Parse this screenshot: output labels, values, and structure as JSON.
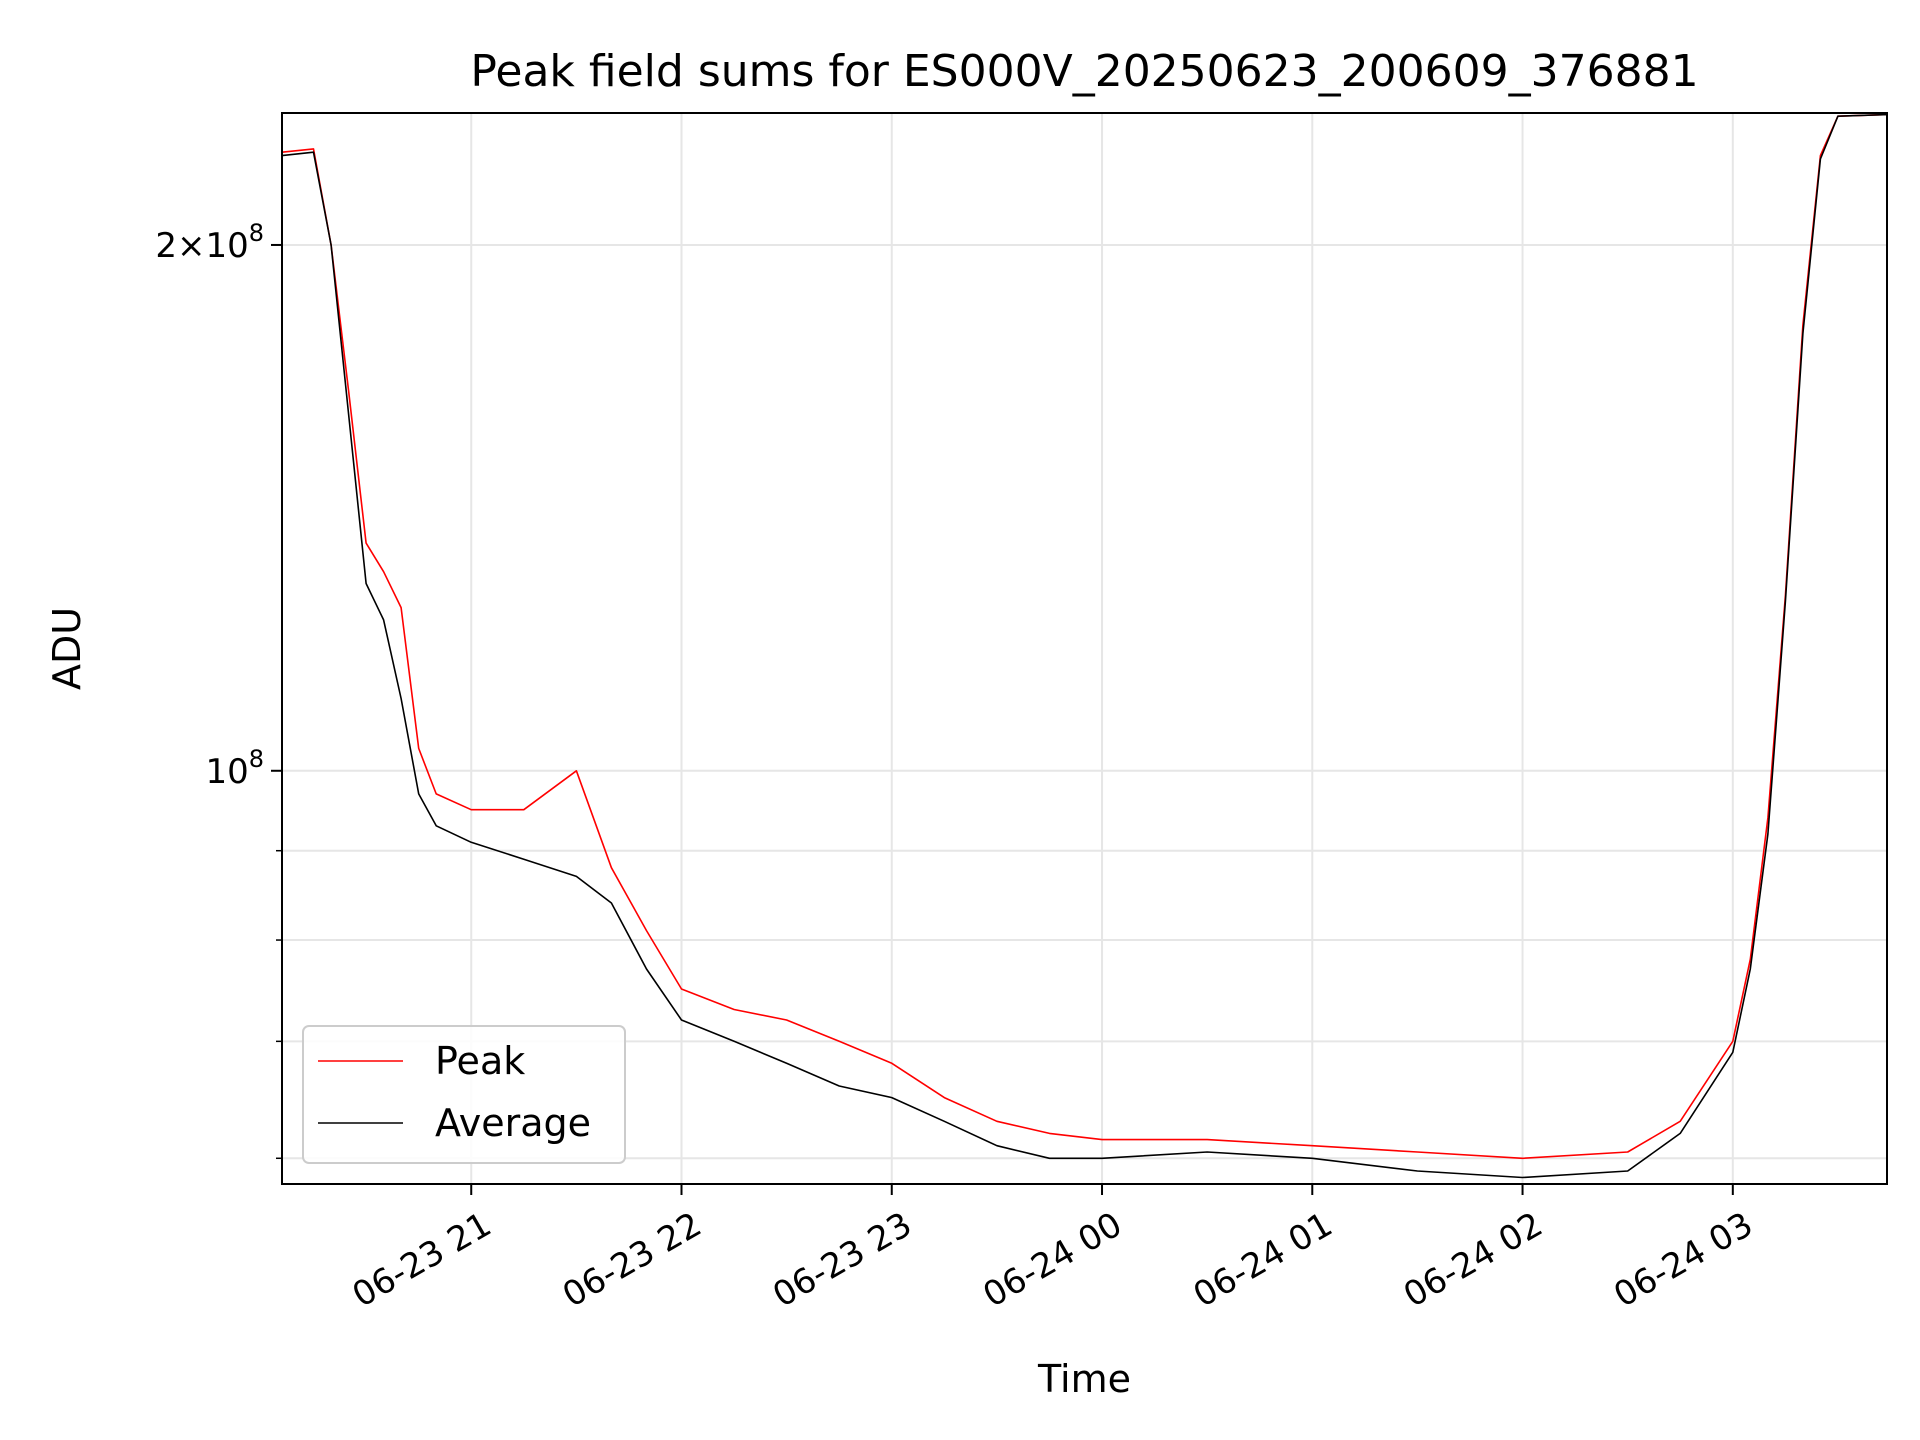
{
  "chart_data": {
    "type": "line",
    "title": "Peak field sums for ES000V_20250623_200609_376881",
    "xlabel": "Time",
    "ylabel": "ADU",
    "x_axis": {
      "kind": "time",
      "range": [
        "2025-06-23 20:06",
        "2025-06-24 03:44"
      ],
      "ticks": [
        {
          "value": "2025-06-23 21:00",
          "label": "06-23 21"
        },
        {
          "value": "2025-06-23 22:00",
          "label": "06-23 22"
        },
        {
          "value": "2025-06-23 23:00",
          "label": "06-23 23"
        },
        {
          "value": "2025-06-24 00:00",
          "label": "06-24 00"
        },
        {
          "value": "2025-06-24 01:00",
          "label": "06-24 01"
        },
        {
          "value": "2025-06-24 02:00",
          "label": "06-24 02"
        },
        {
          "value": "2025-06-24 03:00",
          "label": "06-24 03"
        }
      ]
    },
    "y_axis": {
      "scale": "log",
      "range": [
        58000000,
        238000000
      ],
      "major_ticks": [
        {
          "value": 100000000,
          "label": "10^8"
        },
        {
          "value": 200000000,
          "label": "2×10^8"
        }
      ],
      "minor_ticks": [
        60000000,
        70000000,
        80000000,
        90000000
      ]
    },
    "grid": true,
    "legend": {
      "position": "lower-left"
    },
    "series": [
      {
        "name": "Peak",
        "color": "#ff0000",
        "x": [
          "2025-06-23 20:06",
          "2025-06-23 20:15",
          "2025-06-23 20:20",
          "2025-06-23 20:25",
          "2025-06-23 20:30",
          "2025-06-23 20:35",
          "2025-06-23 20:40",
          "2025-06-23 20:45",
          "2025-06-23 20:50",
          "2025-06-23 21:00",
          "2025-06-23 21:15",
          "2025-06-23 21:30",
          "2025-06-23 21:40",
          "2025-06-23 21:50",
          "2025-06-23 22:00",
          "2025-06-23 22:15",
          "2025-06-23 22:30",
          "2025-06-23 22:45",
          "2025-06-23 23:00",
          "2025-06-23 23:15",
          "2025-06-23 23:30",
          "2025-06-23 23:45",
          "2025-06-24 00:00",
          "2025-06-24 00:30",
          "2025-06-24 01:00",
          "2025-06-24 01:30",
          "2025-06-24 02:00",
          "2025-06-24 02:30",
          "2025-06-24 02:45",
          "2025-06-24 03:00",
          "2025-06-24 03:05",
          "2025-06-24 03:10",
          "2025-06-24 03:15",
          "2025-06-24 03:20",
          "2025-06-24 03:25",
          "2025-06-24 03:30",
          "2025-06-24 03:44"
        ],
        "y": [
          226000000,
          227000000,
          200000000,
          165000000,
          135000000,
          130000000,
          124000000,
          103000000,
          97000000,
          95000000,
          95000000,
          100000000,
          88000000,
          81000000,
          75000000,
          73000000,
          72000000,
          70000000,
          68000000,
          65000000,
          63000000,
          62000000,
          61500000,
          61500000,
          61000000,
          60500000,
          60000000,
          60500000,
          63000000,
          70000000,
          78000000,
          94000000,
          126000000,
          180000000,
          225000000,
          237000000,
          237500000
        ]
      },
      {
        "name": "Average",
        "color": "#000000",
        "x": [
          "2025-06-23 20:06",
          "2025-06-23 20:15",
          "2025-06-23 20:20",
          "2025-06-23 20:25",
          "2025-06-23 20:30",
          "2025-06-23 20:35",
          "2025-06-23 20:40",
          "2025-06-23 20:45",
          "2025-06-23 20:50",
          "2025-06-23 21:00",
          "2025-06-23 21:15",
          "2025-06-23 21:30",
          "2025-06-23 21:40",
          "2025-06-23 21:50",
          "2025-06-23 22:00",
          "2025-06-23 22:15",
          "2025-06-23 22:30",
          "2025-06-23 22:45",
          "2025-06-23 23:00",
          "2025-06-23 23:15",
          "2025-06-23 23:30",
          "2025-06-23 23:45",
          "2025-06-24 00:00",
          "2025-06-24 00:30",
          "2025-06-24 01:00",
          "2025-06-24 01:30",
          "2025-06-24 02:00",
          "2025-06-24 02:30",
          "2025-06-24 02:45",
          "2025-06-24 03:00",
          "2025-06-24 03:05",
          "2025-06-24 03:10",
          "2025-06-24 03:15",
          "2025-06-24 03:20",
          "2025-06-24 03:25",
          "2025-06-24 03:30",
          "2025-06-24 03:44"
        ],
        "y": [
          225000000,
          226000000,
          200000000,
          160000000,
          128000000,
          122000000,
          110000000,
          97000000,
          93000000,
          91000000,
          89000000,
          87000000,
          84000000,
          77000000,
          72000000,
          70000000,
          68000000,
          66000000,
          65000000,
          63000000,
          61000000,
          60000000,
          60000000,
          60500000,
          60000000,
          59000000,
          58500000,
          59000000,
          62000000,
          69000000,
          77000000,
          92000000,
          125000000,
          178000000,
          224000000,
          237000000,
          237500000
        ]
      }
    ]
  }
}
